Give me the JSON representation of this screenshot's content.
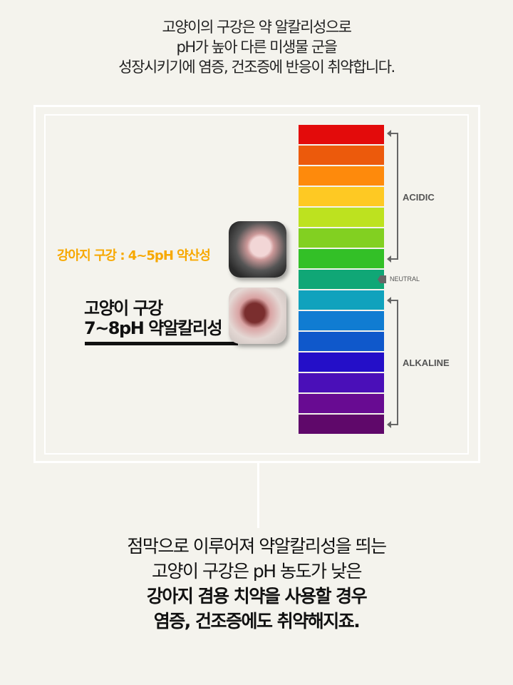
{
  "intro": {
    "lines": [
      "고양이의 구강은 약 알칼리성으로",
      "pH가 높아 다른 미생물 군을",
      "성장시키기에 염증, 건조증에 반응이 취약합니다."
    ]
  },
  "scale": {
    "colors": [
      "#e30b0b",
      "#ec5a0c",
      "#fe8a0c",
      "#fec923",
      "#bde21f",
      "#82d021",
      "#33c027",
      "#10a776",
      "#10a2bd",
      "#107cd2",
      "#0f58cb",
      "#240fc8",
      "#4a0fb8",
      "#680b92",
      "#5f086a"
    ],
    "acidic_label": "ACIDIC",
    "neutral_label": "NEUTRAL",
    "alkaline_label": "ALKALINE",
    "bracket_color": "#666666"
  },
  "dog": {
    "label": "강아지 구강 : 4~5pH 약산성",
    "color": "#f7a800",
    "photo": "dog-teeth-photo"
  },
  "cat": {
    "label_line1": "고양이 구강",
    "label_line2": "7~8pH 약알칼리성",
    "photo": "cat-teeth-photo"
  },
  "conclusion": {
    "lines": [
      "점막으로 이루어져 약알칼리성을 띄는",
      "고양이 구강은 pH 농도가 낮은"
    ],
    "bold_lines": [
      "강아지 겸용 치약을 사용할 경우",
      "염증, 건조증에도 취약해지죠."
    ]
  }
}
